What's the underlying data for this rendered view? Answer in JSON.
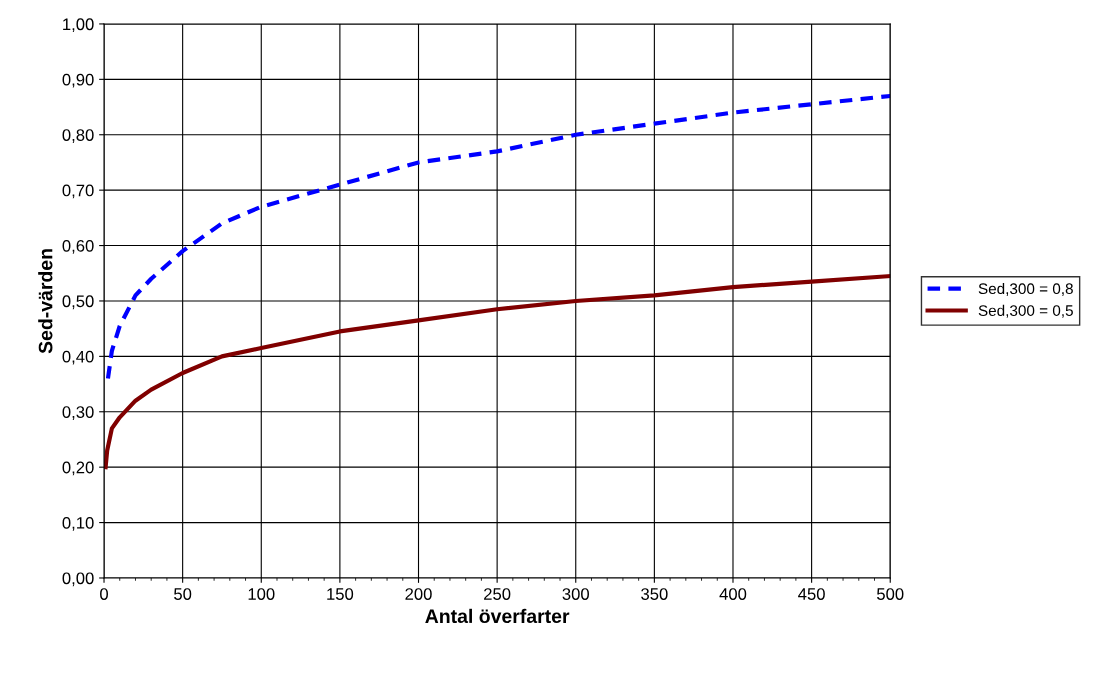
{
  "chart_data": {
    "type": "line",
    "xlabel": "Antal överfarter",
    "ylabel": "Sed-värden",
    "series": [
      {
        "name": "Sed,300 = 0,8",
        "color": "#0000ff",
        "line_style": "dashed",
        "x": [
          2.5,
          5,
          10,
          20,
          30,
          50,
          75,
          100,
          150,
          200,
          250,
          300,
          350,
          400,
          450,
          500
        ],
        "values": [
          0.36,
          0.41,
          0.455,
          0.51,
          0.54,
          0.59,
          0.64,
          0.67,
          0.71,
          0.75,
          0.77,
          0.8,
          0.82,
          0.84,
          0.855,
          0.87
        ]
      },
      {
        "name": "Sed,300 = 0,5",
        "color": "#800000",
        "line_style": "solid",
        "x": [
          1,
          2,
          5,
          10,
          20,
          30,
          50,
          75,
          100,
          150,
          200,
          250,
          300,
          350,
          400,
          450,
          500
        ],
        "values": [
          0.2,
          0.23,
          0.27,
          0.29,
          0.32,
          0.34,
          0.37,
          0.4,
          0.415,
          0.445,
          0.465,
          0.485,
          0.5,
          0.51,
          0.525,
          0.535,
          0.545
        ]
      }
    ],
    "xlim": [
      0,
      500
    ],
    "xticks": [
      0,
      50,
      100,
      150,
      200,
      250,
      300,
      350,
      400,
      450,
      500
    ],
    "ylim": [
      0,
      1
    ],
    "yticks": [
      {
        "value": 0,
        "label": "0,00"
      },
      {
        "value": 0.1,
        "label": "0,10"
      },
      {
        "value": 0.2,
        "label": "0,20"
      },
      {
        "value": 0.3,
        "label": "0,30"
      },
      {
        "value": 0.4,
        "label": "0,40"
      },
      {
        "value": 0.5,
        "label": "0,50"
      },
      {
        "value": 0.6,
        "label": "0,60"
      },
      {
        "value": 0.7,
        "label": "0,70"
      },
      {
        "value": 0.8,
        "label": "0,80"
      },
      {
        "value": 0.9,
        "label": "0,90"
      },
      {
        "value": 1,
        "label": "1,00"
      }
    ],
    "grid": true,
    "legend": "right"
  }
}
